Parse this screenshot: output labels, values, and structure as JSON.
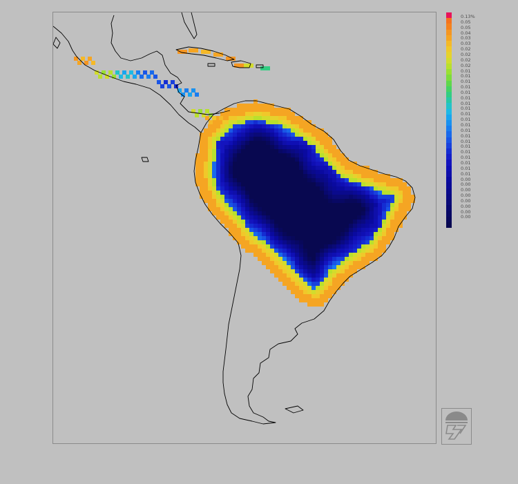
{
  "map": {
    "region": "Latin America",
    "background_color": "#c0c0c0",
    "outline_color": "#000000"
  },
  "legend": {
    "labels": [
      "0.13%",
      "0.05",
      "0.05",
      "0.04",
      "0.03",
      "0.03",
      "0.02",
      "0.02",
      "0.02",
      "0.02",
      "0.01",
      "0.01",
      "0.01",
      "0.01",
      "0.01",
      "0.01",
      "0.01",
      "0.01",
      "0.01",
      "0.01",
      "0.01",
      "0.01",
      "0.01",
      "0.01",
      "0.01",
      "0.01",
      "0.01",
      "0.01",
      "0.01",
      "0.01",
      "0.00",
      "0.00",
      "0.00",
      "0.00",
      "0.00",
      "0.00",
      "0.00",
      "0.00"
    ],
    "colors": [
      "#e8145a",
      "#f5731e",
      "#f5821e",
      "#f59622",
      "#f5a523",
      "#f5b928",
      "#f0c82a",
      "#e6d22d",
      "#d2dc2d",
      "#b9e02d",
      "#9be032",
      "#7ddc3c",
      "#5fd74b",
      "#46d264",
      "#32cd82",
      "#28c8a5",
      "#23c3c8",
      "#1eb9e6",
      "#19a5f0",
      "#1991f0",
      "#197df0",
      "#1969eb",
      "#1955e6",
      "#1941dc",
      "#142dd2",
      "#141ec8",
      "#1414be",
      "#0f0fb4",
      "#0f0faa",
      "#0a0aa0",
      "#0a0a96",
      "#0a0a8c",
      "#0a0a82",
      "#0a0a78",
      "#08086e",
      "#080864",
      "#08085a",
      "#080850"
    ]
  },
  "logo": {
    "icon": "institution-logo-icon"
  }
}
